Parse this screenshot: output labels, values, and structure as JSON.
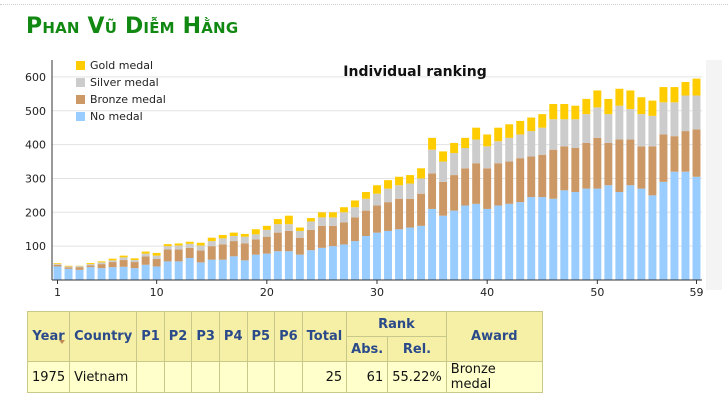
{
  "page": {
    "title": "Phan Vũ Diễm Hằng"
  },
  "chart_data": {
    "type": "bar",
    "stacked": true,
    "title": "Individual ranking",
    "xlabel": "",
    "ylabel": "",
    "x_tick_labels": [
      "1",
      "10",
      "20",
      "30",
      "40",
      "50",
      "59"
    ],
    "y_ticks": [
      100,
      200,
      300,
      400,
      500,
      600
    ],
    "ylim": [
      0,
      650
    ],
    "grid": true,
    "legend_position": "top-left",
    "x": [
      1,
      2,
      3,
      4,
      5,
      6,
      7,
      8,
      9,
      10,
      11,
      12,
      13,
      14,
      15,
      16,
      17,
      18,
      19,
      20,
      21,
      22,
      23,
      24,
      25,
      26,
      27,
      28,
      29,
      30,
      31,
      32,
      33,
      34,
      35,
      36,
      37,
      38,
      39,
      40,
      41,
      42,
      43,
      44,
      45,
      46,
      47,
      48,
      49,
      50,
      51,
      52,
      53,
      54,
      55,
      56,
      57,
      58,
      59
    ],
    "series": [
      {
        "name": "No medal",
        "color": "#99ccff",
        "values": [
          40,
          33,
          30,
          38,
          35,
          38,
          39,
          35,
          45,
          40,
          55,
          55,
          65,
          52,
          60,
          60,
          70,
          58,
          75,
          78,
          85,
          85,
          75,
          88,
          95,
          100,
          105,
          115,
          130,
          140,
          145,
          150,
          155,
          160,
          210,
          190,
          205,
          220,
          225,
          210,
          220,
          225,
          230,
          245,
          245,
          240,
          265,
          260,
          270,
          270,
          280,
          260,
          280,
          270,
          250,
          290,
          320,
          320,
          305
        ]
      },
      {
        "name": "Bronze medal",
        "color": "#cc9966",
        "values": [
          5,
          4,
          8,
          5,
          12,
          15,
          20,
          18,
          25,
          22,
          35,
          35,
          30,
          35,
          40,
          45,
          45,
          50,
          45,
          50,
          55,
          60,
          50,
          60,
          65,
          60,
          65,
          70,
          75,
          80,
          85,
          90,
          85,
          95,
          105,
          100,
          105,
          110,
          120,
          120,
          125,
          125,
          130,
          120,
          125,
          145,
          130,
          130,
          135,
          150,
          125,
          155,
          135,
          125,
          145,
          140,
          105,
          120,
          140
        ]
      },
      {
        "name": "Silver medal",
        "color": "#cccccc",
        "values": [
          3,
          3,
          3,
          4,
          5,
          5,
          8,
          6,
          8,
          10,
          10,
          12,
          12,
          15,
          15,
          18,
          15,
          20,
          15,
          20,
          25,
          20,
          20,
          25,
          25,
          25,
          30,
          30,
          35,
          35,
          40,
          40,
          45,
          45,
          70,
          60,
          65,
          60,
          70,
          65,
          65,
          70,
          70,
          75,
          80,
          90,
          80,
          85,
          85,
          90,
          85,
          100,
          90,
          95,
          90,
          95,
          100,
          105,
          100
        ]
      },
      {
        "name": "Gold medal",
        "color": "#ffcc00",
        "values": [
          2,
          2,
          1,
          3,
          3,
          5,
          5,
          5,
          6,
          8,
          6,
          6,
          6,
          8,
          10,
          10,
          10,
          8,
          15,
          12,
          15,
          25,
          10,
          10,
          15,
          15,
          15,
          20,
          20,
          25,
          25,
          25,
          25,
          30,
          35,
          30,
          30,
          30,
          35,
          35,
          40,
          40,
          40,
          40,
          40,
          45,
          45,
          40,
          45,
          50,
          45,
          50,
          55,
          50,
          45,
          45,
          45,
          40,
          50
        ]
      }
    ]
  },
  "table": {
    "headers": {
      "year": "Year",
      "country": "Country",
      "p1": "P1",
      "p2": "P2",
      "p3": "P3",
      "p4": "P4",
      "p5": "P5",
      "p6": "P6",
      "total": "Total",
      "rank": "Rank",
      "abs": "Abs.",
      "rel": "Rel.",
      "award": "Award"
    },
    "row": {
      "year": "1975",
      "country": "Vietnam",
      "p1": "",
      "p2": "",
      "p3": "",
      "p4": "",
      "p5": "",
      "p6": "",
      "total": "25",
      "abs": "61",
      "rel": "55.22%",
      "award": "Bronze medal"
    }
  }
}
